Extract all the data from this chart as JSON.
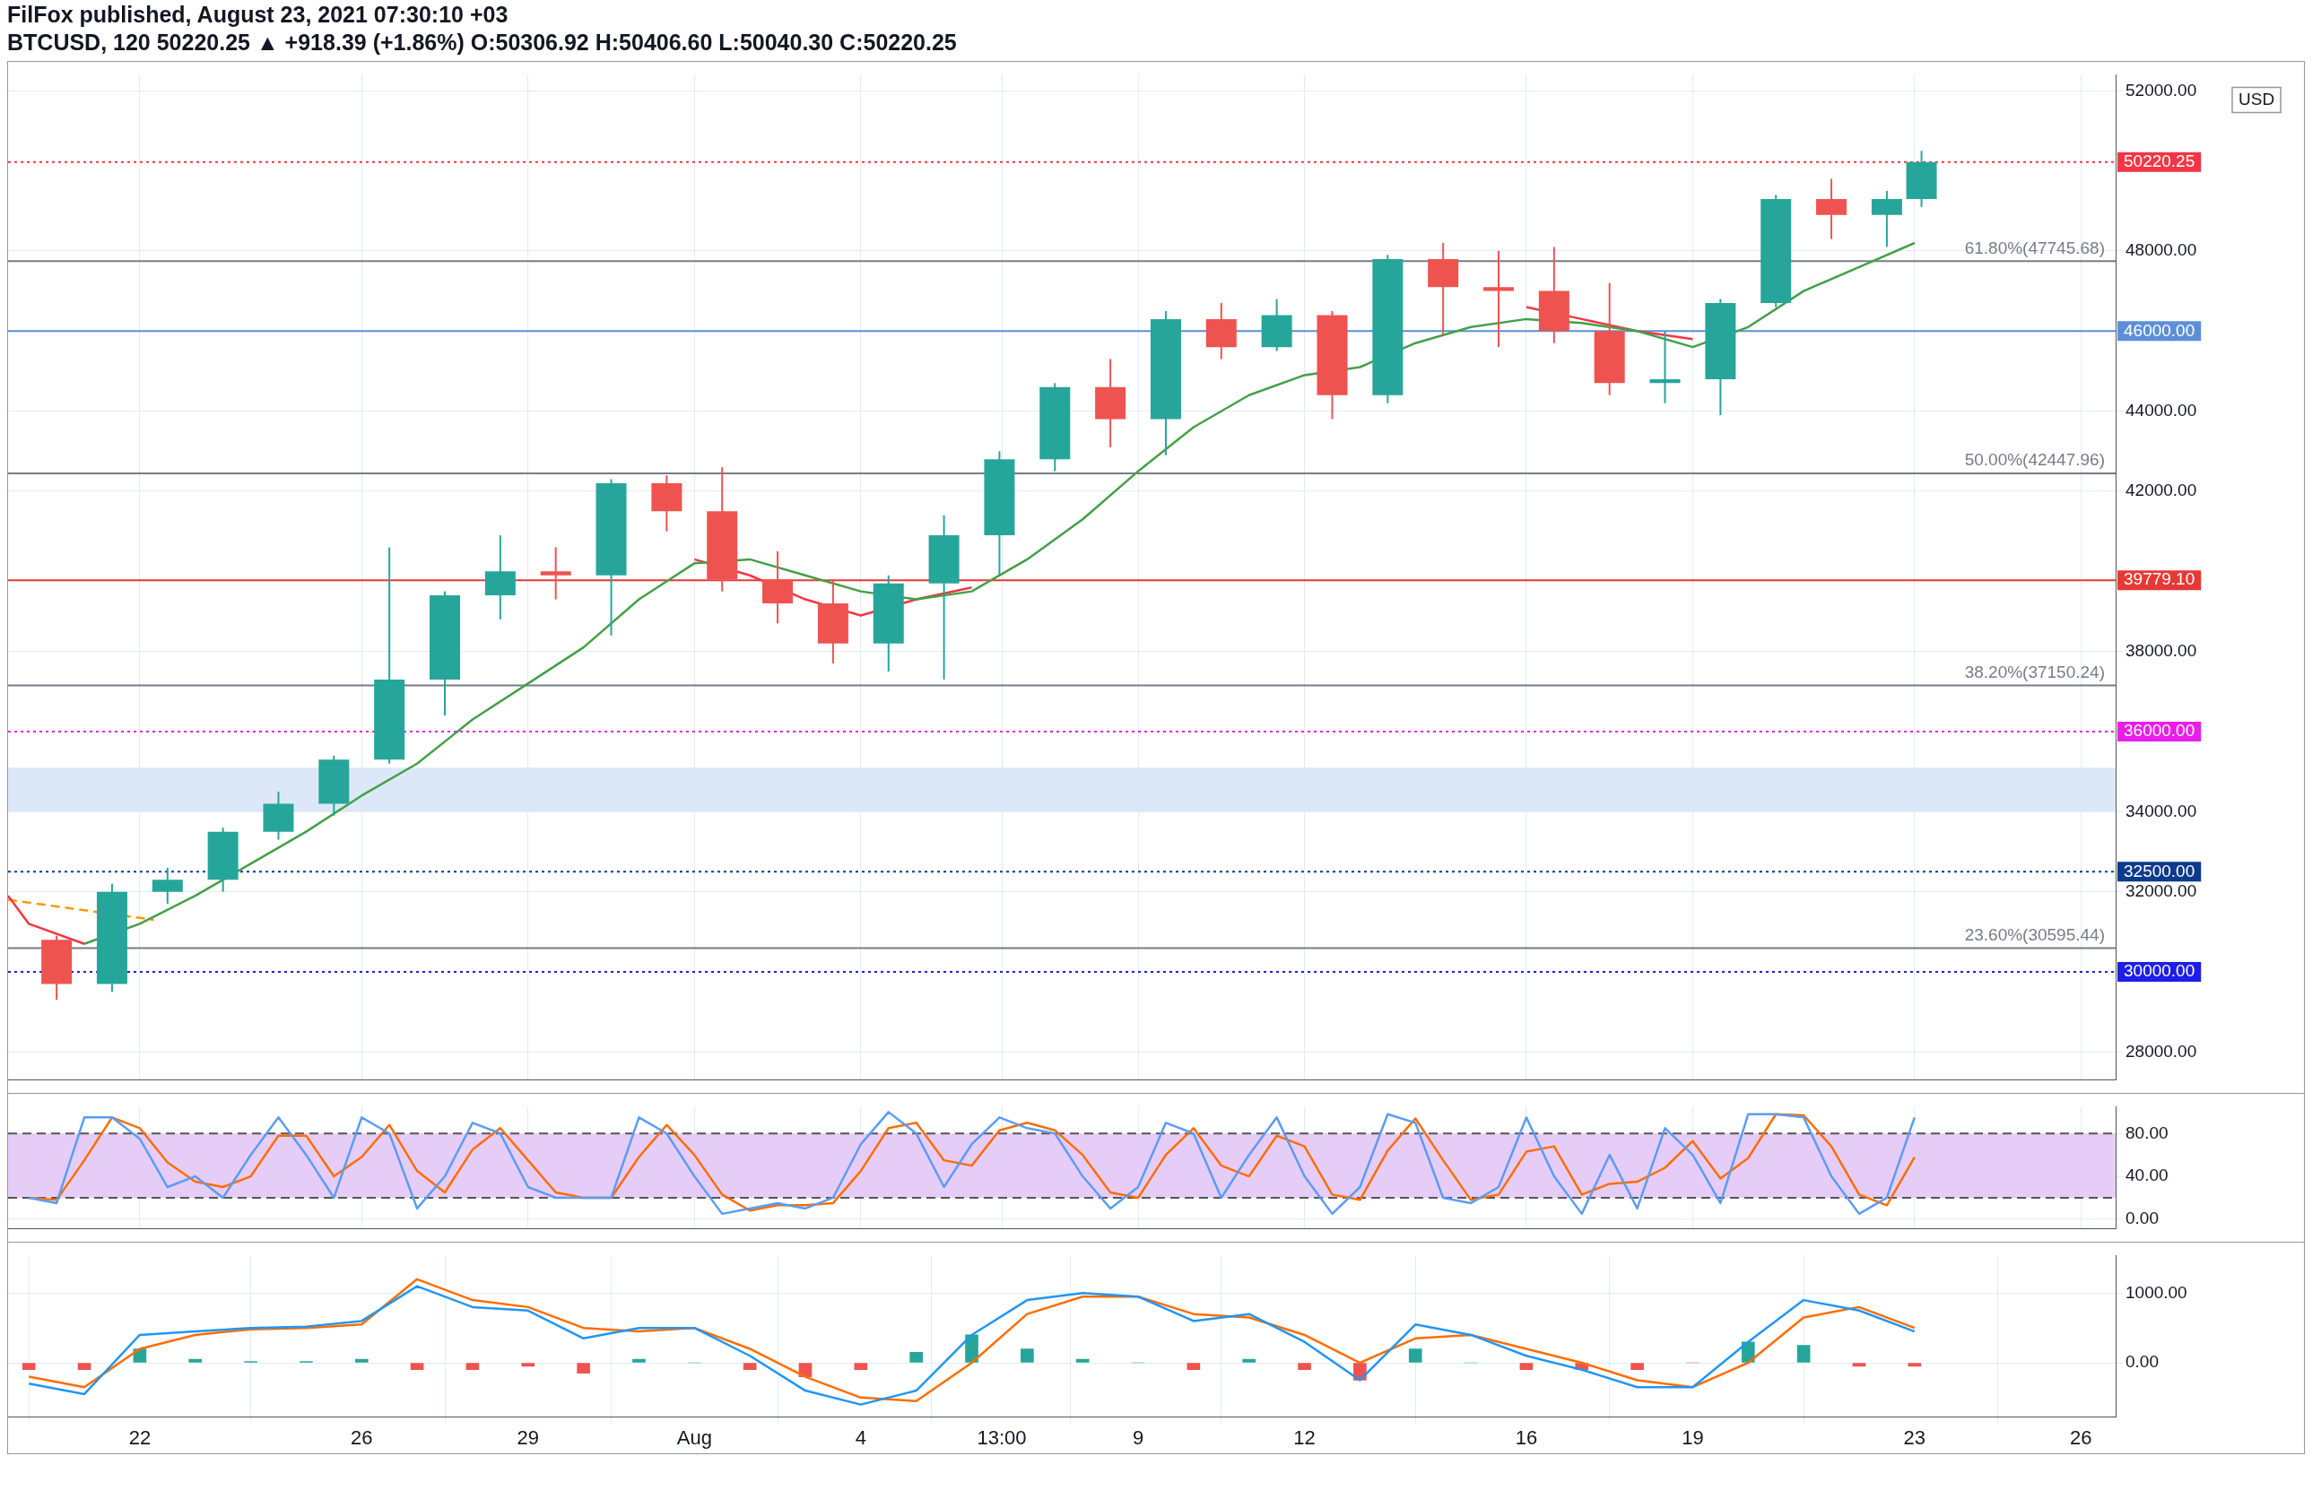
{
  "chart_data": [
    {
      "type": "candlestick",
      "title": "FilFox published, August 23, 2021 07:30:10 +03",
      "subtitle": "BTCUSD, 120  50220.25 ▲ +918.39 (+1.86%) O:50306.92 H:50406.60 L:50040.30 C:50220.25",
      "ylabel": "USD",
      "x": [
        "2021-07-20T12:00",
        "2021-07-21T12:00",
        "2021-07-22T12:00",
        "2021-07-23T12:00",
        "2021-07-24T12:00",
        "2021-07-25T12:00",
        "2021-07-26T12:00",
        "2021-07-27T12:00",
        "2021-07-28T12:00",
        "2021-07-29T12:00",
        "2021-07-30T12:00",
        "2021-07-31T12:00",
        "2021-08-01T12:00",
        "2021-08-02T12:00",
        "2021-08-03T12:00",
        "2021-08-04T12:00",
        "2021-08-05T12:00",
        "2021-08-06T12:00",
        "2021-08-07T12:00",
        "2021-08-08T12:00",
        "2021-08-09T12:00",
        "2021-08-10T12:00",
        "2021-08-11T12:00",
        "2021-08-12T12:00",
        "2021-08-13T12:00",
        "2021-08-14T12:00",
        "2021-08-15T12:00",
        "2021-08-16T12:00",
        "2021-08-17T12:00",
        "2021-08-18T12:00",
        "2021-08-19T12:00",
        "2021-08-20T12:00",
        "2021-08-21T12:00",
        "2021-08-22T12:00",
        "2021-08-23T03:00"
      ],
      "ohlc": [
        [
          30800,
          30900,
          29300,
          29700
        ],
        [
          29700,
          32200,
          29500,
          32000
        ],
        [
          32000,
          32600,
          31700,
          32300
        ],
        [
          32300,
          33600,
          32000,
          33500
        ],
        [
          33500,
          34500,
          33300,
          34200
        ],
        [
          34200,
          35400,
          33900,
          35300
        ],
        [
          35300,
          40600,
          35200,
          37300
        ],
        [
          37300,
          39500,
          36400,
          39400
        ],
        [
          39400,
          40900,
          38800,
          40000
        ],
        [
          40000,
          40600,
          39300,
          39900
        ],
        [
          39900,
          42300,
          38400,
          42200
        ],
        [
          42200,
          42400,
          41000,
          41500
        ],
        [
          41500,
          42600,
          39500,
          39800
        ],
        [
          39800,
          40500,
          38700,
          39200
        ],
        [
          39200,
          39800,
          37700,
          38200
        ],
        [
          38200,
          39900,
          37500,
          39700
        ],
        [
          39700,
          41400,
          37300,
          40900
        ],
        [
          40900,
          43000,
          39900,
          42800
        ],
        [
          42800,
          44700,
          42500,
          44600
        ],
        [
          44600,
          45300,
          43100,
          43800
        ],
        [
          43800,
          46500,
          42900,
          46300
        ],
        [
          46300,
          46700,
          45300,
          45600
        ],
        [
          45600,
          46800,
          45500,
          46400
        ],
        [
          46400,
          46500,
          43800,
          44400
        ],
        [
          44400,
          47900,
          44200,
          47800
        ],
        [
          47800,
          48200,
          45900,
          47100
        ],
        [
          47100,
          48000,
          45600,
          47000
        ],
        [
          47000,
          48100,
          45700,
          46000
        ],
        [
          46000,
          47200,
          44400,
          44700
        ],
        [
          44700,
          46000,
          44200,
          44800
        ],
        [
          44800,
          46800,
          43900,
          46700
        ],
        [
          46700,
          49400,
          46600,
          49300
        ],
        [
          49300,
          49800,
          48300,
          48900
        ],
        [
          48900,
          49500,
          48100,
          49300
        ],
        [
          49300,
          50500,
          49100,
          50220.25
        ]
      ],
      "colors": [
        "#ef5350",
        "#26a69a",
        "#26a69a",
        "#26a69a",
        "#26a69a",
        "#26a69a",
        "#26a69a",
        "#26a69a",
        "#26a69a",
        "#ef5350",
        "#26a69a",
        "#ef5350",
        "#ef5350",
        "#ef5350",
        "#ef5350",
        "#26a69a",
        "#26a69a",
        "#26a69a",
        "#26a69a",
        "#ef5350",
        "#26a69a",
        "#ef5350",
        "#26a69a",
        "#ef5350",
        "#26a69a",
        "#ef5350",
        "#ef5350",
        "#ef5350",
        "#ef5350",
        "#26a69a",
        "#26a69a",
        "#26a69a",
        "#ef5350",
        "#26a69a",
        "#26a69a"
      ],
      "series": [
        {
          "type": "line",
          "color": "#43a047",
          "x": [
            "2021-07-21",
            "2021-07-22",
            "2021-07-23",
            "2021-07-24",
            "2021-07-25",
            "2021-07-26",
            "2021-07-27",
            "2021-07-28",
            "2021-07-29",
            "2021-07-30",
            "2021-07-31",
            "2021-08-01",
            "2021-08-02",
            "2021-08-03",
            "2021-08-04",
            "2021-08-05",
            "2021-08-06",
            "2021-08-07",
            "2021-08-08",
            "2021-08-09",
            "2021-08-10",
            "2021-08-11",
            "2021-08-12",
            "2021-08-13",
            "2021-08-14",
            "2021-08-15",
            "2021-08-16",
            "2021-08-17",
            "2021-08-18",
            "2021-08-19",
            "2021-08-20",
            "2021-08-21",
            "2021-08-22",
            "2021-08-23"
          ],
          "values": [
            30700,
            31200,
            31900,
            32700,
            33500,
            34400,
            35200,
            36300,
            37200,
            38100,
            39300,
            40200,
            40300,
            39900,
            39500,
            39300,
            39500,
            40300,
            41300,
            42500,
            43600,
            44400,
            44900,
            45100,
            45700,
            46100,
            46300,
            46200,
            46000,
            45600,
            46100,
            47000,
            47600,
            48200
          ]
        },
        {
          "type": "line",
          "color": "#f23645",
          "x": [
            "2021-07-19T15:00",
            "2021-07-20",
            "2021-07-21",
            "2021-07-31",
            "2021-08-01",
            "2021-08-02",
            "2021-08-03",
            "2021-08-04",
            "2021-08-05",
            "2021-08-06",
            "2021-08-15",
            "2021-08-16",
            "2021-08-17",
            "2021-08-18",
            "2021-08-19"
          ],
          "values": [
            31900,
            31200,
            30700,
            null,
            40300,
            39900,
            39300,
            38900,
            39300,
            39600,
            null,
            46600,
            46300,
            46000,
            45800
          ]
        },
        {
          "type": "line",
          "color": "#ff9800",
          "line_style": "dashed",
          "x": [
            "2021-07-19T15:00",
            "2021-07-22T06:00"
          ],
          "values": [
            31800,
            31300
          ]
        }
      ],
      "xlim": [
        "2021-07-19T15:00",
        "2021-08-26T15:00"
      ],
      "xticks": [
        {
          "value": "2021-07-22",
          "label": null
        },
        {
          "value": "2021-07-26",
          "label": null
        },
        {
          "value": "2021-07-29",
          "label": null
        },
        {
          "value": "2021-08-01",
          "label": null
        },
        {
          "value": "2021-08-04",
          "label": null
        },
        {
          "value": "2021-08-06T13:00",
          "label": null
        },
        {
          "value": "2021-08-09",
          "label": null
        },
        {
          "value": "2021-08-12",
          "label": null
        },
        {
          "value": "2021-08-16",
          "label": null
        },
        {
          "value": "2021-08-19",
          "label": null
        },
        {
          "value": "2021-08-23",
          "label": null
        },
        {
          "value": "2021-08-26",
          "label": null
        }
      ],
      "ylim": [
        27300,
        52400
      ],
      "yticks": [
        {
          "value": 28000,
          "label": "28000.00"
        },
        {
          "value": 32000,
          "label": "32000.00"
        },
        {
          "value": 34000,
          "label": "34000.00"
        },
        {
          "value": 38000,
          "label": "38000.00"
        },
        {
          "value": 42000,
          "label": "42000.00"
        },
        {
          "value": 44000,
          "label": "44000.00"
        },
        {
          "value": 48000,
          "label": "48000.00"
        },
        {
          "value": 52000,
          "label": "52000.00"
        }
      ],
      "ref_lines": [
        {
          "axis": "y",
          "value": 50220.25,
          "label": "50220.25",
          "color": "#f23645",
          "line_style": "dotted"
        },
        {
          "axis": "y",
          "value": 47745.68,
          "label": "61.80%(47745.68)",
          "color": "#787b86",
          "line_style": "solid"
        },
        {
          "axis": "y",
          "value": 46000,
          "label": "46000.00",
          "color": "#5b8fd8",
          "line_style": "solid"
        },
        {
          "axis": "y",
          "value": 42447.96,
          "label": "50.00%(42447.96)",
          "color": "#787b86",
          "line_style": "solid"
        },
        {
          "axis": "y",
          "value": 39779.1,
          "label": "39779.10",
          "color": "#e53935",
          "line_style": "solid"
        },
        {
          "axis": "y",
          "value": 37150.24,
          "label": "38.20%(37150.24)",
          "color": "#787b86",
          "line_style": "solid"
        },
        {
          "axis": "y",
          "value": 36000,
          "label": "36000.00",
          "color": "#e91ee9",
          "line_style": "dotted"
        },
        {
          "axis": "y",
          "value": 32500,
          "label": "32500.00",
          "color": "#0d3a8c",
          "line_style": "dotted"
        },
        {
          "axis": "y",
          "value": 30595.44,
          "label": "23.60%(30595.44)",
          "color": "#787b86",
          "line_style": "solid"
        },
        {
          "axis": "y",
          "value": 30000,
          "label": "30000.00",
          "color": "#1e1ee6",
          "line_style": "dotted"
        }
      ],
      "bands": [
        {
          "axis": "y",
          "from": 34000,
          "to": 35100,
          "color": "#dce8f7"
        }
      ],
      "grid": true,
      "tick_labels": "y",
      "legend": false
    },
    {
      "type": "line",
      "x": [
        "2021-07-20T00:00",
        "2021-07-20T12:00",
        "2021-07-21T00:00",
        "2021-07-21T12:00",
        "2021-07-22T00:00",
        "2021-07-22T12:00",
        "2021-07-23T00:00",
        "2021-07-23T12:00",
        "2021-07-24T00:00",
        "2021-07-24T12:00",
        "2021-07-25T00:00",
        "2021-07-25T12:00",
        "2021-07-26T00:00",
        "2021-07-26T12:00",
        "2021-07-27T00:00",
        "2021-07-27T12:00",
        "2021-07-28T00:00",
        "2021-07-28T12:00",
        "2021-07-29T00:00",
        "2021-07-29T12:00",
        "2021-07-30T00:00",
        "2021-07-30T12:00",
        "2021-07-31T00:00",
        "2021-07-31T12:00",
        "2021-08-01T00:00",
        "2021-08-01T12:00",
        "2021-08-02T00:00",
        "2021-08-02T12:00",
        "2021-08-03T00:00",
        "2021-08-03T12:00",
        "2021-08-04T00:00",
        "2021-08-04T12:00",
        "2021-08-05T00:00",
        "2021-08-05T12:00",
        "2021-08-06T00:00",
        "2021-08-06T12:00",
        "2021-08-07T00:00",
        "2021-08-07T12:00",
        "2021-08-08T00:00",
        "2021-08-08T12:00",
        "2021-08-09T00:00",
        "2021-08-09T12:00",
        "2021-08-10T00:00",
        "2021-08-10T12:00",
        "2021-08-11T00:00",
        "2021-08-11T12:00",
        "2021-08-12T00:00",
        "2021-08-12T12:00",
        "2021-08-13T00:00",
        "2021-08-13T12:00",
        "2021-08-14T00:00",
        "2021-08-14T12:00",
        "2021-08-15T00:00",
        "2021-08-15T12:00",
        "2021-08-16T00:00",
        "2021-08-16T12:00",
        "2021-08-17T00:00",
        "2021-08-17T12:00",
        "2021-08-18T00:00",
        "2021-08-18T12:00",
        "2021-08-19T00:00",
        "2021-08-19T12:00",
        "2021-08-20T00:00",
        "2021-08-20T12:00",
        "2021-08-21T00:00",
        "2021-08-21T12:00",
        "2021-08-22T00:00",
        "2021-08-22T12:00",
        "2021-08-23T00:00"
      ],
      "series": [
        {
          "color": "#5b9cf6",
          "values": [
            20,
            15,
            95,
            95,
            75,
            30,
            40,
            20,
            60,
            95,
            60,
            20,
            95,
            80,
            10,
            40,
            90,
            80,
            30,
            20,
            20,
            20,
            95,
            80,
            40,
            5,
            10,
            15,
            10,
            20,
            70,
            100,
            80,
            30,
            70,
            95,
            85,
            80,
            40,
            10,
            30,
            90,
            80,
            20,
            60,
            95,
            40,
            5,
            30,
            98,
            90,
            20,
            15,
            30,
            95,
            40,
            5,
            60,
            10,
            85,
            60,
            15,
            98,
            98,
            95,
            40,
            5,
            20,
            95
          ]
        },
        {
          "color": "#ff6d00",
          "values": [
            20,
            18,
            55,
            95,
            85,
            53,
            35,
            30,
            40,
            78,
            78,
            40,
            58,
            88,
            45,
            25,
            65,
            85,
            55,
            25,
            20,
            20,
            58,
            88,
            60,
            23,
            8,
            13,
            13,
            15,
            45,
            85,
            90,
            55,
            50,
            83,
            90,
            83,
            60,
            25,
            20,
            60,
            85,
            50,
            40,
            78,
            68,
            23,
            18,
            64,
            94,
            55,
            18,
            23,
            63,
            68,
            23,
            33,
            35,
            48,
            73,
            38,
            57,
            98,
            97,
            68,
            23,
            13,
            58
          ]
        }
      ],
      "xlim": [
        "2021-07-19T15:00",
        "2021-08-26T15:00"
      ],
      "xticks": [
        {
          "value": "2021-07-22",
          "label": null
        },
        {
          "value": "2021-07-26",
          "label": null
        },
        {
          "value": "2021-07-29",
          "label": null
        },
        {
          "value": "2021-08-01",
          "label": null
        },
        {
          "value": "2021-08-04",
          "label": null
        },
        {
          "value": "2021-08-06T13:00",
          "label": null
        },
        {
          "value": "2021-08-09",
          "label": null
        },
        {
          "value": "2021-08-12",
          "label": null
        },
        {
          "value": "2021-08-16",
          "label": null
        },
        {
          "value": "2021-08-19",
          "label": null
        },
        {
          "value": "2021-08-23",
          "label": null
        },
        {
          "value": "2021-08-26",
          "label": null
        }
      ],
      "ylim": [
        -9,
        105
      ],
      "yticks": [
        {
          "value": 0,
          "label": "0.00"
        },
        {
          "value": 40,
          "label": "40.00"
        },
        {
          "value": 80,
          "label": "80.00"
        }
      ],
      "bands": [
        {
          "axis": "y",
          "from": 20,
          "to": 80,
          "color": "#e6cdf7"
        }
      ],
      "ref_lines": [
        {
          "axis": "y",
          "value": 80,
          "color": "#555555",
          "line_style": "dashed"
        },
        {
          "axis": "y",
          "value": 20,
          "color": "#555555",
          "line_style": "dashed"
        }
      ],
      "grid": true,
      "tick_labels": "y",
      "legend": false
    },
    {
      "type": "line",
      "x": [
        "2021-07-20",
        "2021-07-21",
        "2021-07-22",
        "2021-07-23",
        "2021-07-24",
        "2021-07-25",
        "2021-07-26",
        "2021-07-27",
        "2021-07-28",
        "2021-07-29",
        "2021-07-30",
        "2021-07-31",
        "2021-08-01",
        "2021-08-02",
        "2021-08-03",
        "2021-08-04",
        "2021-08-05",
        "2021-08-06",
        "2021-08-07",
        "2021-08-08",
        "2021-08-09",
        "2021-08-10",
        "2021-08-11",
        "2021-08-12",
        "2021-08-13",
        "2021-08-14",
        "2021-08-15",
        "2021-08-16",
        "2021-08-17",
        "2021-08-18",
        "2021-08-19",
        "2021-08-20",
        "2021-08-21",
        "2021-08-22",
        "2021-08-23"
      ],
      "series": [
        {
          "type": "bar",
          "colors": [
            "#ef5350",
            "#ef5350",
            "#26a69a",
            "#26a69a",
            "#26a69a",
            "#26a69a",
            "#26a69a",
            "#ef5350",
            "#ef5350",
            "#ef5350",
            "#ef5350",
            "#26a69a",
            "#26a69a",
            "#ef5350",
            "#ef5350",
            "#ef5350",
            "#26a69a",
            "#26a69a",
            "#26a69a",
            "#26a69a",
            "#26a69a",
            "#ef5350",
            "#26a69a",
            "#ef5350",
            "#ef5350",
            "#26a69a",
            "#26a69a",
            "#ef5350",
            "#ef5350",
            "#ef5350",
            "#ef5350",
            "#26a69a",
            "#26a69a",
            "#ef5350",
            "#ef5350"
          ],
          "values": [
            -100,
            -100,
            200,
            50,
            20,
            20,
            50,
            -100,
            -100,
            -50,
            -150,
            50,
            0,
            -100,
            -200,
            -100,
            150,
            400,
            200,
            50,
            0,
            -100,
            50,
            -100,
            -250,
            200,
            0,
            -100,
            -100,
            -100,
            0,
            300,
            250,
            -50,
            -50
          ]
        },
        {
          "color": "#2196f3",
          "values": [
            -300,
            -450,
            400,
            450,
            500,
            520,
            600,
            1100,
            800,
            750,
            350,
            500,
            500,
            100,
            -400,
            -600,
            -400,
            400,
            900,
            1000,
            950,
            600,
            700,
            300,
            -250,
            550,
            400,
            100,
            -100,
            -350,
            -350,
            300,
            900,
            750,
            450
          ]
        },
        {
          "color": "#ff6d00",
          "values": [
            -200,
            -350,
            200,
            400,
            480,
            500,
            550,
            1200,
            900,
            800,
            500,
            450,
            500,
            200,
            -200,
            -500,
            -550,
            0,
            700,
            950,
            950,
            700,
            650,
            400,
            0,
            350,
            400,
            200,
            0,
            -250,
            -350,
            0,
            650,
            800,
            500
          ]
        }
      ],
      "xlim": [
        "2021-07-19T15:00",
        "2021-08-26T15:00"
      ],
      "xticks": [
        {
          "value": "2021-07-22",
          "label": "22"
        },
        {
          "value": "2021-07-26",
          "label": "26"
        },
        {
          "value": "2021-07-29",
          "label": "29"
        },
        {
          "value": "2021-08-01",
          "label": "Aug"
        },
        {
          "value": "2021-08-04",
          "label": "4"
        },
        {
          "value": "2021-08-06T13:00",
          "label": "13:00"
        },
        {
          "value": "2021-08-09",
          "label": "9"
        },
        {
          "value": "2021-08-12",
          "label": "12"
        },
        {
          "value": "2021-08-16",
          "label": "16"
        },
        {
          "value": "2021-08-19",
          "label": "19"
        },
        {
          "value": "2021-08-23",
          "label": "23"
        },
        {
          "value": "2021-08-26",
          "label": "26"
        }
      ],
      "ylim": [
        -780,
        1540
      ],
      "yticks": [
        {
          "value": 0,
          "label": "0.00"
        },
        {
          "value": 1000,
          "label": "1000.00"
        }
      ],
      "grid": true,
      "legend": false
    }
  ]
}
